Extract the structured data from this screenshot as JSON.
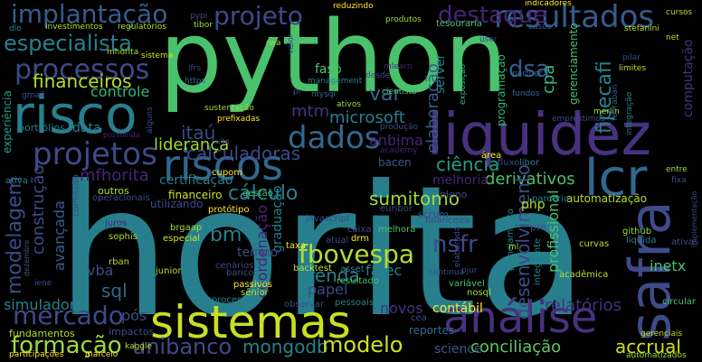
{
  "palette": {
    "purple": "#440154",
    "indigo": "#46327e",
    "blue": "#365c8d",
    "teal": "#277f8e",
    "cyan": "#1fa187",
    "green": "#4ac16d",
    "lime": "#a0da39",
    "yellow": "#fde725"
  },
  "words": [
    {
      "text": "horita",
      "color": "#277f8e"
    },
    {
      "text": "python",
      "color": "#4ac16d"
    },
    {
      "text": "liquidez",
      "color": "#46327e"
    },
    {
      "text": "sistemas",
      "color": "#c8e020"
    },
    {
      "text": "risco",
      "color": "#277f8e"
    },
    {
      "text": "riscos",
      "color": "#31688e"
    },
    {
      "text": "análise",
      "color": "#46327e"
    },
    {
      "text": "safra",
      "color": "#3e4a89"
    },
    {
      "text": "lcr",
      "color": "#31688e"
    },
    {
      "text": "projetos",
      "color": "#3e4a89"
    },
    {
      "text": "dados",
      "color": "#31688e"
    },
    {
      "text": "processos",
      "color": "#3e4a89"
    },
    {
      "text": "implantação",
      "color": "#365c8d"
    },
    {
      "text": "projeto",
      "color": "#3e4a89"
    },
    {
      "text": "resultados",
      "color": "#365c8d"
    },
    {
      "text": "especialista",
      "color": "#26828e"
    },
    {
      "text": "mercado",
      "color": "#3e4a89"
    },
    {
      "text": "formação",
      "color": "#a0da39"
    },
    {
      "text": "unibanco",
      "color": "#3e4a89"
    },
    {
      "text": "mongodb",
      "color": "#26828e"
    },
    {
      "text": "modelo",
      "color": "#d0e11c"
    },
    {
      "text": "conciliação",
      "color": "#5ec962"
    },
    {
      "text": "accrual",
      "color": "#d0e11c"
    },
    {
      "text": "financeiros",
      "color": "#b5de2b"
    },
    {
      "text": "fbovespa",
      "color": "#b5de2b"
    },
    {
      "text": "sumitomo",
      "color": "#a0da39"
    },
    {
      "text": "cálculo",
      "color": "#26828e"
    },
    {
      "text": "calculadoras",
      "color": "#3e4a89"
    },
    {
      "text": "ciência",
      "color": "#1fa187"
    },
    {
      "text": "derivativos",
      "color": "#4ac16d"
    },
    {
      "text": "microsoft",
      "color": "#277f8e"
    },
    {
      "text": "liderança",
      "color": "#a0da39"
    },
    {
      "text": "itaú",
      "color": "#3e4a89"
    },
    {
      "text": "controle",
      "color": "#35b779"
    },
    {
      "text": "certificação",
      "color": "#277f8e"
    },
    {
      "text": "destaque",
      "color": "#482475"
    },
    {
      "text": "dsa",
      "color": "#365c8d"
    },
    {
      "text": "var",
      "color": "#31688e"
    },
    {
      "text": "mtm",
      "color": "#46327e"
    },
    {
      "text": "nsfr",
      "color": "#3e4a89"
    },
    {
      "text": "sql",
      "color": "#31688e"
    },
    {
      "text": "bm",
      "color": "#277f8e"
    },
    {
      "text": "vba",
      "color": "#3e4a89"
    },
    {
      "text": "renda",
      "color": "#26828e"
    },
    {
      "text": "papel",
      "color": "#3e4a89"
    },
    {
      "text": "novos",
      "color": "#46327e"
    },
    {
      "text": "fatec",
      "color": "#26828e"
    },
    {
      "text": "relatórios",
      "color": "#46327e"
    },
    {
      "text": "science",
      "color": "#365c8d"
    },
    {
      "text": "pós",
      "color": "#3e4a89"
    },
    {
      "text": "contábil",
      "color": "#fde725"
    },
    {
      "text": "simulador",
      "color": "#26828e"
    },
    {
      "text": "modelagem",
      "color": "#3e4a89"
    },
    {
      "text": "desenvolvimento",
      "color": "#3e4a89"
    },
    {
      "text": "construção",
      "color": "#3e4a89"
    },
    {
      "text": "avançada",
      "color": "#365c8d"
    },
    {
      "text": "mfhorita",
      "color": "#482475"
    },
    {
      "text": "fipecafi",
      "color": "#26828e"
    },
    {
      "text": "cpa",
      "color": "#35b779"
    },
    {
      "text": "coordenação",
      "color": "#482475"
    },
    {
      "text": "graduação",
      "color": "#277f8e"
    },
    {
      "text": "tempo",
      "color": "#3e4a89"
    },
    {
      "text": "elaboração",
      "color": "#365c8d"
    },
    {
      "text": "profissional",
      "color": "#4ac16d"
    },
    {
      "text": "inetx",
      "color": "#4ac16d"
    },
    {
      "text": "php",
      "color": "#b5de2b"
    },
    {
      "text": "melhoria",
      "color": "#482475"
    },
    {
      "text": "anbima",
      "color": "#482475"
    },
    {
      "text": "bacen",
      "color": "#365c8d"
    },
    {
      "text": "server",
      "color": "#277f8e"
    },
    {
      "text": "fasp",
      "color": "#4ac16d"
    },
    {
      "text": "data",
      "color": "#277f8e"
    },
    {
      "text": "experiência",
      "color": "#1fa187"
    },
    {
      "text": "portfólios",
      "color": "#277f8e"
    },
    {
      "text": "fundamentos",
      "color": "#b5de2b"
    },
    {
      "text": "impactos",
      "color": "#3e4a89"
    },
    {
      "text": "reportes",
      "color": "#31688e"
    },
    {
      "text": "programação",
      "color": "#35b779"
    },
    {
      "text": "gerenciamento",
      "color": "#4ac16d"
    },
    {
      "text": "computação",
      "color": "#46327e"
    },
    {
      "text": "automatização",
      "color": "#b5de2b"
    },
    {
      "text": "financeiro",
      "color": "#d0e11c"
    },
    {
      "text": "outros",
      "color": "#b5de2b"
    },
    {
      "text": "operacionais",
      "color": "#3e4a89"
    },
    {
      "text": "utilizando",
      "color": "#3e4a89"
    },
    {
      "text": "ativa",
      "color": "#26828e"
    },
    {
      "text": "comissão",
      "color": "#3e4a89"
    },
    {
      "text": "juros",
      "color": "#482475"
    },
    {
      "text": "sophis",
      "color": "#b5de2b"
    },
    {
      "text": "especial",
      "color": "#d0e11c"
    },
    {
      "text": "brgaap",
      "color": "#a0da39"
    },
    {
      "text": "rban",
      "color": "#b5de2b"
    },
    {
      "text": "junior",
      "color": "#b5de2b"
    },
    {
      "text": "cenários",
      "color": "#3e4a89"
    },
    {
      "text": "passivos",
      "color": "#fde725"
    },
    {
      "text": "sênior",
      "color": "#b5de2b"
    },
    {
      "text": "processo",
      "color": "#26828e"
    },
    {
      "text": "banco",
      "color": "#3e4a89"
    },
    {
      "text": "gestão",
      "color": "#4ac16d"
    },
    {
      "text": "protótipo",
      "color": "#fde725"
    },
    {
      "text": "cupom",
      "color": "#fde725"
    },
    {
      "text": "taxa",
      "color": "#fde725"
    },
    {
      "text": "backtest",
      "color": "#b5de2b"
    },
    {
      "text": "pessoais",
      "color": "#26828e"
    },
    {
      "text": "observar",
      "color": "#3e4a89"
    },
    {
      "text": "asset",
      "color": "#26828e"
    },
    {
      "text": "resultado",
      "color": "#4ac16d"
    },
    {
      "text": "atual",
      "color": "#3e4a89"
    },
    {
      "text": "caixa",
      "color": "#3e4a89"
    },
    {
      "text": "drm",
      "color": "#fde725"
    },
    {
      "text": "javascript",
      "color": "#3e4a89"
    },
    {
      "text": "melhora",
      "color": "#4ac16d"
    },
    {
      "text": "euribor",
      "color": "#3e4a89"
    },
    {
      "text": "área",
      "color": "#fde725"
    },
    {
      "text": "libor",
      "color": "#26828e"
    },
    {
      "text": "parceria",
      "color": "#26828e"
    },
    {
      "text": "fluxo",
      "color": "#3e4a89"
    },
    {
      "text": "scrum",
      "color": "#3e4a89"
    },
    {
      "text": "pleno",
      "color": "#3e4a89"
    },
    {
      "text": "financeira",
      "color": "#3e4a89"
    },
    {
      "text": "pré",
      "color": "#3e4a89"
    },
    {
      "text": "nosql",
      "color": "#a0da39"
    },
    {
      "text": "variável",
      "color": "#4ac16d"
    },
    {
      "text": "integrante",
      "color": "#26828e"
    },
    {
      "text": "planejamento",
      "color": "#26828e"
    },
    {
      "text": "curvas",
      "color": "#b5de2b"
    },
    {
      "text": "acadêmica",
      "color": "#b5de2b"
    },
    {
      "text": "github",
      "color": "#a0da39"
    },
    {
      "text": "líquida",
      "color": "#26828e"
    },
    {
      "text": "ativas",
      "color": "#3e4a89"
    },
    {
      "text": "circular",
      "color": "#4ac16d"
    },
    {
      "text": "gerenciais",
      "color": "#b5de2b"
    },
    {
      "text": "automatizados",
      "color": "#a0da39"
    },
    {
      "text": "kaggle",
      "color": "#b5de2b"
    },
    {
      "text": "marcelo",
      "color": "#fde725"
    },
    {
      "text": "participações",
      "color": "#fde725"
    },
    {
      "text": "reduzindo",
      "color": "#fde725"
    },
    {
      "text": "produtos",
      "color": "#a0da39"
    },
    {
      "text": "indicadores",
      "color": "#fde725"
    },
    {
      "text": "tesouraria",
      "color": "#4ac16d"
    },
    {
      "text": "cursos",
      "color": "#b5de2b"
    },
    {
      "text": "stefanini",
      "color": "#b5de2b"
    },
    {
      "text": "investimentos",
      "color": "#b5de2b"
    },
    {
      "text": "regulatórios",
      "color": "#b5de2b"
    },
    {
      "text": "pypi",
      "color": "#3e4a89"
    },
    {
      "text": "tibor",
      "color": "#a0da39"
    },
    {
      "text": "mhorita",
      "color": "#b5de2b"
    },
    {
      "text": "sistema",
      "color": "#d0e11c"
    },
    {
      "text": "ifrs",
      "color": "#3e4a89"
    },
    {
      "text": "https",
      "color": "#31688e"
    },
    {
      "text": "management",
      "color": "#26828e"
    },
    {
      "text": "mysql",
      "color": "#31688e"
    },
    {
      "text": "cientista",
      "color": "#4ac16d"
    },
    {
      "text": "gmail",
      "color": "#3e4a89"
    },
    {
      "text": "sustentação",
      "color": "#a0da39"
    },
    {
      "text": "prefixadas",
      "color": "#fde725"
    },
    {
      "text": "produção",
      "color": "#3e4a89"
    },
    {
      "text": "academy",
      "color": "#482475"
    },
    {
      "text": "empréstimos",
      "color": "#3e4a89"
    },
    {
      "text": "merlin",
      "color": "#a0da39"
    },
    {
      "text": "febraban",
      "color": "#365c8d"
    },
    {
      "text": "integração",
      "color": "#26828e"
    },
    {
      "text": "fundos",
      "color": "#31688e"
    },
    {
      "text": "user",
      "color": "#3e4a89"
    },
    {
      "text": "desde",
      "color": "#3e4a89"
    },
    {
      "text": "dlo",
      "color": "#26828e"
    },
    {
      "text": "rwa",
      "color": "#a0da39"
    },
    {
      "text": "valor",
      "color": "#3e4a89"
    },
    {
      "text": "pilar",
      "color": "#3e4a89"
    },
    {
      "text": "limites",
      "color": "#b5de2b"
    },
    {
      "text": "partner",
      "color": "#31688e"
    },
    {
      "text": "net",
      "color": "#b5de2b"
    },
    {
      "text": "exposição",
      "color": "#35b779"
    },
    {
      "text": "mlearn",
      "color": "#482475"
    },
    {
      "text": "casos",
      "color": "#365c8d"
    },
    {
      "text": "alguns",
      "color": "#3e4a89"
    },
    {
      "text": "ativos",
      "color": "#a0da39"
    },
    {
      "text": "pr",
      "color": "#3e4a89"
    },
    {
      "text": "implementação",
      "color": "#3e4a89"
    },
    {
      "text": "fixa",
      "color": "#3e4a89"
    },
    {
      "text": "entre",
      "color": "#a0da39"
    },
    {
      "text": "suíte",
      "color": "#3e4a89"
    },
    {
      "text": "possuindo",
      "color": "#482475"
    },
    {
      "text": "ml",
      "color": "#a0da39"
    },
    {
      "text": "cea",
      "color": "#3e4a89"
    },
    {
      "text": "iene",
      "color": "#3e4a89"
    },
    {
      "text": "dezembro",
      "color": "#365c8d"
    },
    {
      "text": "continua",
      "color": "#3e4a89"
    },
    {
      "text": "pjur",
      "color": "#3e4a89"
    },
    {
      "text": "elaborada",
      "color": "#3e4a89"
    }
  ]
}
